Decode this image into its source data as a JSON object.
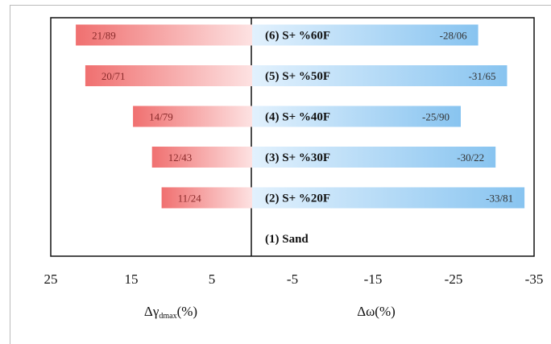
{
  "chart_data": {
    "type": "bar",
    "layout": "back-to-back horizontal bar",
    "categories": [
      "(1) Sand",
      "(2) S+ %20F",
      "(3) S+ %30F",
      "(4) S+ %40F",
      "(5) S+ %50F",
      "(6) S+ %60F"
    ],
    "series": [
      {
        "values": [
          0,
          11.24,
          12.43,
          14.79,
          20.71,
          21.89
        ],
        "labels": [
          "",
          "11/24",
          "12/43",
          "14/79",
          "20/71",
          "21/89"
        ],
        "color": "#f07070"
      },
      {
        "values": [
          0,
          -33.81,
          -30.22,
          -25.9,
          -31.65,
          -28.06
        ],
        "labels": [
          "",
          "-33/81",
          "-30/22",
          "-25/90",
          "-31/65",
          "-28/06"
        ],
        "color": "#88c4f0"
      }
    ],
    "xticks": [
      "25",
      "15",
      "5",
      "-5",
      "-15",
      "-25",
      "-35"
    ],
    "xlim": [
      25,
      -35
    ],
    "left_axis_label": {
      "main": "Δγ",
      "subscript": "dmax",
      "suffix": "(%)"
    },
    "right_axis_label": "Δω(%)",
    "grid": false,
    "legend": "none"
  }
}
